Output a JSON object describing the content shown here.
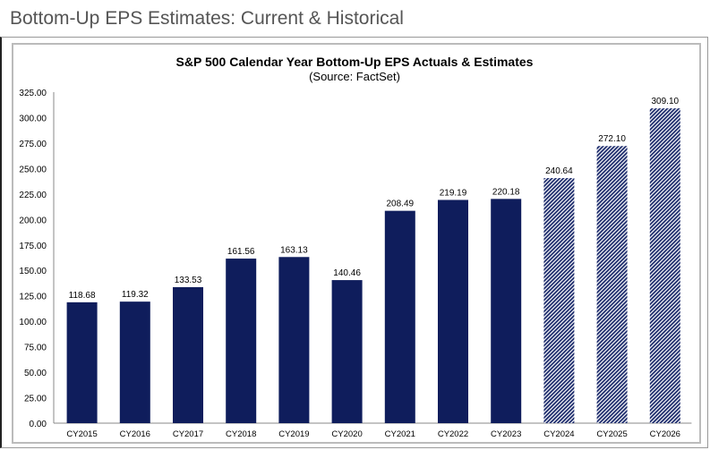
{
  "header": {
    "title": "Bottom-Up EPS Estimates: Current & Historical"
  },
  "chart_data": {
    "type": "bar",
    "title": "S&P 500 Calendar Year Bottom-Up EPS Actuals & Estimates",
    "subtitle": "(Source: FactSet)",
    "categories": [
      "CY2015",
      "CY2016",
      "CY2017",
      "CY2018",
      "CY2019",
      "CY2020",
      "CY2021",
      "CY2022",
      "CY2023",
      "CY2024",
      "CY2025",
      "CY2026"
    ],
    "values": [
      118.68,
      119.32,
      133.53,
      161.56,
      163.13,
      140.46,
      208.49,
      219.19,
      220.18,
      240.64,
      272.1,
      309.1
    ],
    "value_labels": [
      "118.68",
      "119.32",
      "133.53",
      "161.56",
      "163.13",
      "140.46",
      "208.49",
      "219.19",
      "220.18",
      "240.64",
      "272.10",
      "309.10"
    ],
    "estimate": [
      false,
      false,
      false,
      false,
      false,
      false,
      false,
      false,
      false,
      true,
      true,
      true
    ],
    "yticks": [
      "0.00",
      "25.00",
      "50.00",
      "75.00",
      "100.00",
      "125.00",
      "150.00",
      "175.00",
      "200.00",
      "225.00",
      "250.00",
      "275.00",
      "300.00",
      "325.00"
    ],
    "ylim": [
      0,
      325
    ],
    "xlabel": "",
    "ylabel": "",
    "colors": {
      "actual": "#0f1d5c",
      "estimate_pattern": "#1b2a6b"
    }
  }
}
